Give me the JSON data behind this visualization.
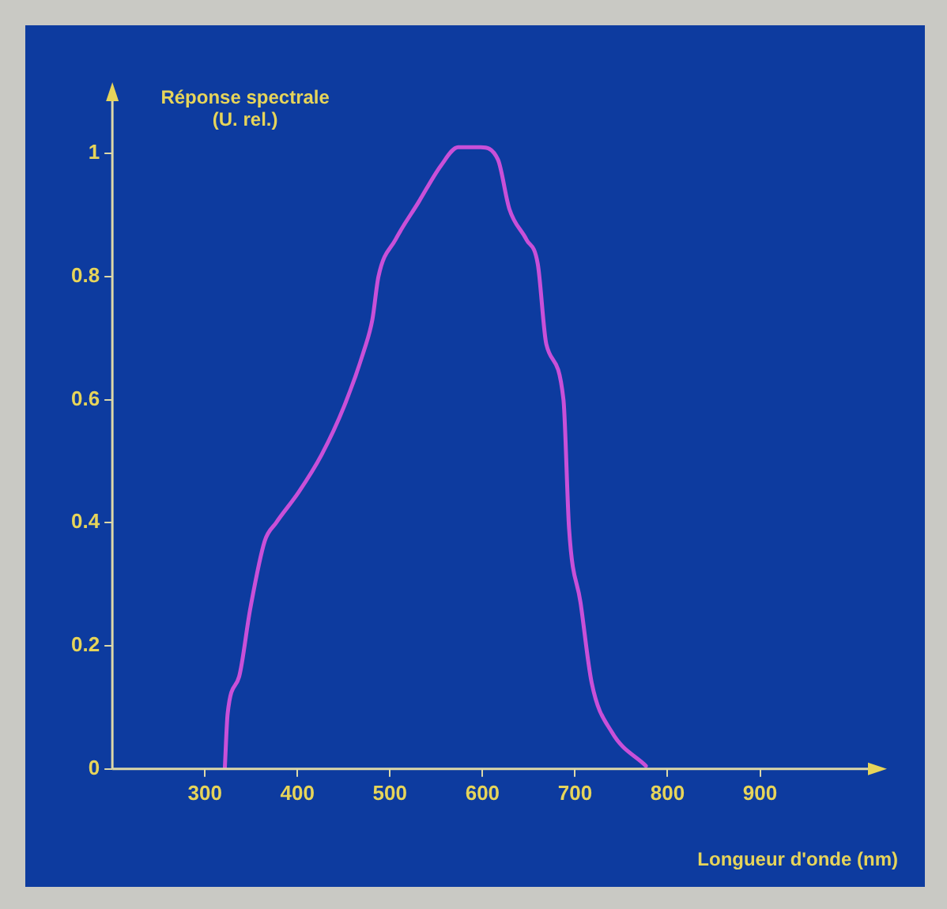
{
  "chart_data": {
    "type": "line",
    "ylabel": "Réponse spectrale\n(U. rel.)",
    "xlabel": "Longueur d'onde (nm)",
    "x": [
      321.5,
      324.6,
      337,
      349,
      364.6,
      377,
      401.5,
      426,
      450.7,
      472,
      481,
      487.6,
      506,
      530.6,
      555,
      573.7,
      598,
      616.7,
      629,
      647.5,
      659.8,
      669,
      687.5,
      693.6,
      706,
      718,
      739.7,
      776.6
    ],
    "series": [
      {
        "color": "#c850d8",
        "values": [
          0,
          0.09,
          0.15,
          0.26,
          0.37,
          0.4,
          0.45,
          0.51,
          0.59,
          0.68,
          0.73,
          0.8,
          0.86,
          0.92,
          0.98,
          1.01,
          1.01,
          0.99,
          0.91,
          0.86,
          0.82,
          0.69,
          0.6,
          0.39,
          0.27,
          0.14,
          0.06,
          0.005
        ]
      }
    ],
    "xlim": [
      200,
      1020
    ],
    "xticks": [
      300,
      400,
      500,
      600,
      700,
      800,
      900
    ],
    "ylim": [
      0,
      1.09
    ],
    "yticks": [
      0,
      0.2,
      0.4,
      0.6,
      0.8,
      1
    ],
    "grid": false,
    "legend": false,
    "marker": "none",
    "line_style": "solid"
  }
}
